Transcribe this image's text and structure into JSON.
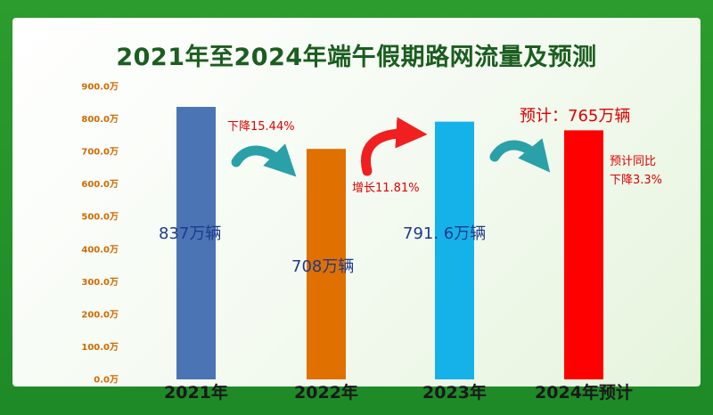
{
  "colors": {
    "bar_2021": "#4a74b4",
    "bar_2022": "#e07000",
    "bar_2023": "#15b2ea",
    "bar_2024": "#ff0000",
    "arrow_teal": "#2aa0a8",
    "arrow_red": "#f02020",
    "frame_green": "#1f8a2e"
  },
  "chart_data": {
    "type": "bar",
    "title": "2021年至2024年端午假期路网流量及预测",
    "categories": [
      "2021年",
      "2022年",
      "2023年",
      "2024年预计"
    ],
    "values": [
      837,
      708,
      791.6,
      765
    ],
    "value_labels": [
      "837万辆",
      "708万辆",
      "791. 6万辆",
      ""
    ],
    "ylim": [
      0,
      900
    ],
    "y_ticks": [
      "0.0万",
      "100.0万",
      "200.0万",
      "300.0万",
      "400.0万",
      "500.0万",
      "600.0万",
      "700.0万",
      "800.0万",
      "900.0万"
    ],
    "annotations": {
      "change_2022": "下降15.44%",
      "change_2023": "增长11.81%",
      "forecast_value": "预计：765万辆",
      "forecast_change_line1": "预计同比",
      "forecast_change_line2": "下降3.3%"
    },
    "grid": false
  }
}
